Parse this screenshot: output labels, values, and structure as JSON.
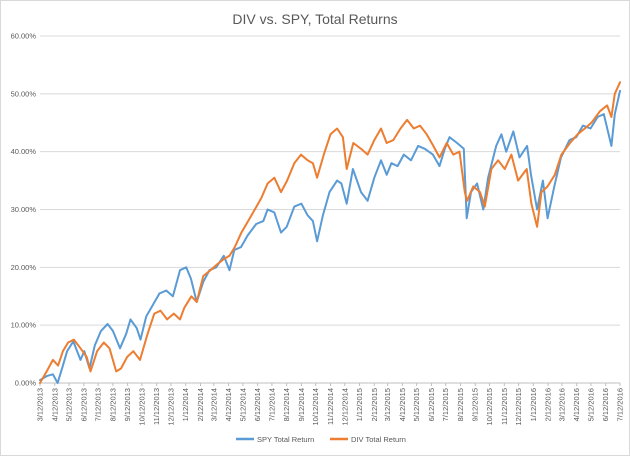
{
  "chart_data": {
    "type": "line",
    "title": "DIV vs. SPY, Total Returns",
    "xlabel": "",
    "ylabel": "",
    "ylim": [
      0,
      0.6
    ],
    "y_ticks": [
      "0.00%",
      "10.00%",
      "20.00%",
      "30.00%",
      "40.00%",
      "50.00%",
      "60.00%"
    ],
    "x_tick_labels": [
      "3/12/2013",
      "4/12/2013",
      "5/12/2013",
      "6/12/2013",
      "7/12/2013",
      "8/12/2013",
      "9/12/2013",
      "10/12/2013",
      "11/12/2013",
      "12/12/2013",
      "1/12/2014",
      "2/12/2014",
      "3/12/2014",
      "4/12/2014",
      "5/12/2014",
      "6/12/2014",
      "7/12/2014",
      "8/12/2014",
      "9/12/2014",
      "10/12/2014",
      "11/12/2014",
      "12/12/2014",
      "1/12/2015",
      "2/12/2015",
      "3/12/2015",
      "4/12/2015",
      "5/12/2015",
      "6/12/2015",
      "7/12/2015",
      "8/12/2015",
      "9/12/2015",
      "10/12/2015",
      "11/12/2015",
      "12/12/2015",
      "1/12/2016",
      "2/12/2016",
      "3/12/2016",
      "4/12/2016",
      "5/12/2016",
      "6/12/2016",
      "7/12/2016"
    ],
    "grid": true,
    "legend_position": "bottom",
    "series": [
      {
        "name": "SPY Total Return",
        "color": "#5b9bd5",
        "points": [
          [
            "3/12/2013",
            0.005
          ],
          [
            "3/26/2013",
            0.012
          ],
          [
            "4/8/2013",
            0.015
          ],
          [
            "4/18/2013",
            0.0
          ],
          [
            "4/29/2013",
            0.03
          ],
          [
            "5/8/2013",
            0.055
          ],
          [
            "5/21/2013",
            0.072
          ],
          [
            "6/5/2013",
            0.04
          ],
          [
            "6/13/2013",
            0.055
          ],
          [
            "6/24/2013",
            0.025
          ],
          [
            "7/5/2013",
            0.065
          ],
          [
            "7/18/2013",
            0.09
          ],
          [
            "8/1/2013",
            0.102
          ],
          [
            "8/12/2013",
            0.09
          ],
          [
            "8/27/2013",
            0.06
          ],
          [
            "9/9/2013",
            0.085
          ],
          [
            "9/18/2013",
            0.11
          ],
          [
            "10/1/2013",
            0.095
          ],
          [
            "10/9/2013",
            0.075
          ],
          [
            "10/21/2013",
            0.115
          ],
          [
            "11/4/2013",
            0.135
          ],
          [
            "11/18/2013",
            0.155
          ],
          [
            "12/2/2013",
            0.16
          ],
          [
            "12/16/2013",
            0.15
          ],
          [
            "12/31/2013",
            0.195
          ],
          [
            "1/13/2014",
            0.2
          ],
          [
            "1/23/2014",
            0.18
          ],
          [
            "2/4/2014",
            0.14
          ],
          [
            "2/18/2014",
            0.175
          ],
          [
            "3/3/2014",
            0.195
          ],
          [
            "3/17/2014",
            0.2
          ],
          [
            "4/2/2014",
            0.22
          ],
          [
            "4/14/2014",
            0.195
          ],
          [
            "4/24/2014",
            0.23
          ],
          [
            "5/8/2014",
            0.235
          ],
          [
            "5/22/2014",
            0.255
          ],
          [
            "6/9/2014",
            0.275
          ],
          [
            "6/24/2014",
            0.28
          ],
          [
            "7/3/2014",
            0.3
          ],
          [
            "7/17/2014",
            0.295
          ],
          [
            "7/31/2014",
            0.26
          ],
          [
            "8/12/2014",
            0.27
          ],
          [
            "8/28/2014",
            0.305
          ],
          [
            "9/12/2014",
            0.31
          ],
          [
            "9/25/2014",
            0.29
          ],
          [
            "10/6/2014",
            0.28
          ],
          [
            "10/15/2014",
            0.245
          ],
          [
            "10/27/2014",
            0.29
          ],
          [
            "11/10/2014",
            0.33
          ],
          [
            "11/26/2014",
            0.35
          ],
          [
            "12/5/2014",
            0.345
          ],
          [
            "12/16/2014",
            0.31
          ],
          [
            "12/29/2014",
            0.37
          ],
          [
            "1/15/2015",
            0.33
          ],
          [
            "1/29/2015",
            0.315
          ],
          [
            "2/12/2015",
            0.355
          ],
          [
            "2/26/2015",
            0.385
          ],
          [
            "3/10/2015",
            0.36
          ],
          [
            "3/20/2015",
            0.38
          ],
          [
            "4/2/2015",
            0.375
          ],
          [
            "4/15/2015",
            0.395
          ],
          [
            "4/30/2015",
            0.385
          ],
          [
            "5/15/2015",
            0.41
          ],
          [
            "5/29/2015",
            0.405
          ],
          [
            "6/15/2015",
            0.395
          ],
          [
            "6/29/2015",
            0.375
          ],
          [
            "7/10/2015",
            0.405
          ],
          [
            "7/20/2015",
            0.425
          ],
          [
            "8/5/2015",
            0.415
          ],
          [
            "8/19/2015",
            0.405
          ],
          [
            "8/25/2015",
            0.285
          ],
          [
            "9/3/2015",
            0.33
          ],
          [
            "9/16/2015",
            0.345
          ],
          [
            "9/29/2015",
            0.3
          ],
          [
            "10/9/2015",
            0.355
          ],
          [
            "10/26/2015",
            0.41
          ],
          [
            "11/6/2015",
            0.43
          ],
          [
            "11/16/2015",
            0.4
          ],
          [
            "12/1/2015",
            0.435
          ],
          [
            "12/14/2015",
            0.39
          ],
          [
            "12/30/2015",
            0.41
          ],
          [
            "1/7/2016",
            0.36
          ],
          [
            "1/20/2016",
            0.3
          ],
          [
            "2/1/2016",
            0.35
          ],
          [
            "2/11/2016",
            0.285
          ],
          [
            "2/25/2016",
            0.34
          ],
          [
            "3/10/2016",
            0.39
          ],
          [
            "3/28/2016",
            0.42
          ],
          [
            "4/11/2016",
            0.425
          ],
          [
            "4/25/2016",
            0.445
          ],
          [
            "5/11/2016",
            0.44
          ],
          [
            "5/26/2016",
            0.46
          ],
          [
            "6/8/2016",
            0.465
          ],
          [
            "6/24/2016",
            0.41
          ],
          [
            "7/1/2016",
            0.465
          ],
          [
            "7/12/2016",
            0.505
          ]
        ]
      },
      {
        "name": "DIV Total Return",
        "color": "#ed7d31",
        "points": [
          [
            "3/12/2013",
            0.0
          ],
          [
            "3/26/2013",
            0.02
          ],
          [
            "4/8/2013",
            0.04
          ],
          [
            "4/19/2013",
            0.03
          ],
          [
            "4/29/2013",
            0.055
          ],
          [
            "5/10/2013",
            0.07
          ],
          [
            "5/22/2013",
            0.075
          ],
          [
            "6/5/2013",
            0.06
          ],
          [
            "6/18/2013",
            0.045
          ],
          [
            "6/26/2013",
            0.02
          ],
          [
            "7/10/2013",
            0.055
          ],
          [
            "7/24/2013",
            0.07
          ],
          [
            "8/5/2013",
            0.06
          ],
          [
            "8/19/2013",
            0.02
          ],
          [
            "8/29/2013",
            0.025
          ],
          [
            "9/11/2013",
            0.045
          ],
          [
            "9/24/2013",
            0.055
          ],
          [
            "10/8/2013",
            0.04
          ],
          [
            "10/24/2013",
            0.085
          ],
          [
            "11/7/2013",
            0.12
          ],
          [
            "11/20/2013",
            0.125
          ],
          [
            "12/4/2013",
            0.11
          ],
          [
            "12/18/2013",
            0.12
          ],
          [
            "12/31/2013",
            0.11
          ],
          [
            "1/9/2014",
            0.13
          ],
          [
            "1/24/2014",
            0.15
          ],
          [
            "2/4/2014",
            0.14
          ],
          [
            "2/18/2014",
            0.185
          ],
          [
            "3/5/2014",
            0.195
          ],
          [
            "3/19/2014",
            0.205
          ],
          [
            "4/3/2014",
            0.215
          ],
          [
            "4/14/2014",
            0.22
          ],
          [
            "4/25/2014",
            0.235
          ],
          [
            "5/9/2014",
            0.26
          ],
          [
            "5/23/2014",
            0.28
          ],
          [
            "6/6/2014",
            0.3
          ],
          [
            "6/20/2014",
            0.32
          ],
          [
            "7/3/2014",
            0.345
          ],
          [
            "7/17/2014",
            0.355
          ],
          [
            "7/31/2014",
            0.33
          ],
          [
            "8/13/2014",
            0.35
          ],
          [
            "8/28/2014",
            0.38
          ],
          [
            "9/11/2014",
            0.395
          ],
          [
            "9/25/2014",
            0.385
          ],
          [
            "10/6/2014",
            0.38
          ],
          [
            "10/15/2014",
            0.355
          ],
          [
            "10/29/2014",
            0.395
          ],
          [
            "11/12/2014",
            0.43
          ],
          [
            "11/26/2014",
            0.44
          ],
          [
            "12/8/2014",
            0.425
          ],
          [
            "12/16/2014",
            0.37
          ],
          [
            "12/30/2014",
            0.415
          ],
          [
            "1/15/2015",
            0.405
          ],
          [
            "1/29/2015",
            0.395
          ],
          [
            "2/12/2015",
            0.42
          ],
          [
            "2/26/2015",
            0.44
          ],
          [
            "3/10/2015",
            0.415
          ],
          [
            "3/24/2015",
            0.42
          ],
          [
            "4/8/2015",
            0.44
          ],
          [
            "4/22/2015",
            0.455
          ],
          [
            "5/6/2015",
            0.44
          ],
          [
            "5/19/2015",
            0.445
          ],
          [
            "6/2/2015",
            0.43
          ],
          [
            "6/16/2015",
            0.41
          ],
          [
            "6/29/2015",
            0.39
          ],
          [
            "7/14/2015",
            0.415
          ],
          [
            "7/28/2015",
            0.395
          ],
          [
            "8/10/2015",
            0.4
          ],
          [
            "8/21/2015",
            0.33
          ],
          [
            "8/26/2015",
            0.315
          ],
          [
            "9/8/2015",
            0.34
          ],
          [
            "9/22/2015",
            0.33
          ],
          [
            "10/2/2015",
            0.305
          ],
          [
            "10/16/2015",
            0.37
          ],
          [
            "10/30/2015",
            0.385
          ],
          [
            "11/13/2015",
            0.37
          ],
          [
            "11/27/2015",
            0.395
          ],
          [
            "12/11/2015",
            0.35
          ],
          [
            "12/29/2015",
            0.37
          ],
          [
            "1/8/2016",
            0.31
          ],
          [
            "1/20/2016",
            0.27
          ],
          [
            "1/29/2016",
            0.33
          ],
          [
            "2/11/2016",
            0.34
          ],
          [
            "2/26/2016",
            0.36
          ],
          [
            "3/11/2016",
            0.395
          ],
          [
            "3/29/2016",
            0.415
          ],
          [
            "4/14/2016",
            0.43
          ],
          [
            "4/29/2016",
            0.44
          ],
          [
            "5/13/2016",
            0.45
          ],
          [
            "5/31/2016",
            0.47
          ],
          [
            "6/15/2016",
            0.48
          ],
          [
            "6/24/2016",
            0.46
          ],
          [
            "7/1/2016",
            0.5
          ],
          [
            "7/12/2016",
            0.52
          ]
        ]
      }
    ]
  }
}
